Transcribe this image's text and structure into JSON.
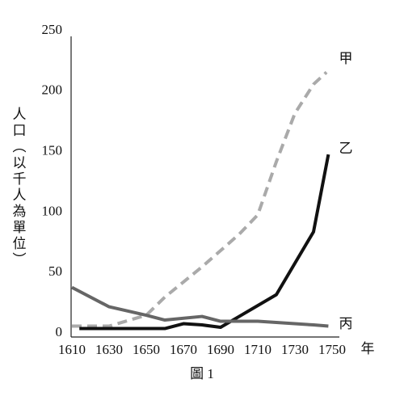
{
  "chart_data": {
    "type": "line",
    "y_label": "人口（以千人為單位）",
    "x_label": "年",
    "caption": "圖 1",
    "xlim": [
      1610,
      1750
    ],
    "xticks": [
      1610,
      1630,
      1650,
      1670,
      1690,
      1710,
      1730,
      1750
    ],
    "ylim": [
      0,
      250
    ],
    "yticks": [
      0,
      50,
      100,
      150,
      200,
      250
    ],
    "series": [
      {
        "name": "甲",
        "color": "#aaaaaa",
        "dashed": true,
        "x": [
          1610,
          1630,
          1650,
          1660,
          1680,
          1700,
          1710,
          1720,
          1730,
          1740,
          1747
        ],
        "values": [
          7,
          7,
          16,
          31,
          56,
          83,
          99,
          143,
          183,
          207,
          217
        ]
      },
      {
        "name": "乙",
        "color": "#111111",
        "dashed": false,
        "x": [
          1614,
          1630,
          1660,
          1670,
          1680,
          1690,
          1700,
          1720,
          1740,
          1748
        ],
        "values": [
          5,
          5,
          5,
          9,
          8,
          6,
          15,
          33,
          85,
          149
        ]
      },
      {
        "name": "丙",
        "color": "#666666",
        "dashed": false,
        "x": [
          1610,
          1630,
          1650,
          1660,
          1680,
          1690,
          1710,
          1720,
          1740,
          1748
        ],
        "values": [
          39,
          23,
          16,
          12,
          15,
          11,
          11,
          10,
          8,
          7
        ]
      }
    ]
  }
}
